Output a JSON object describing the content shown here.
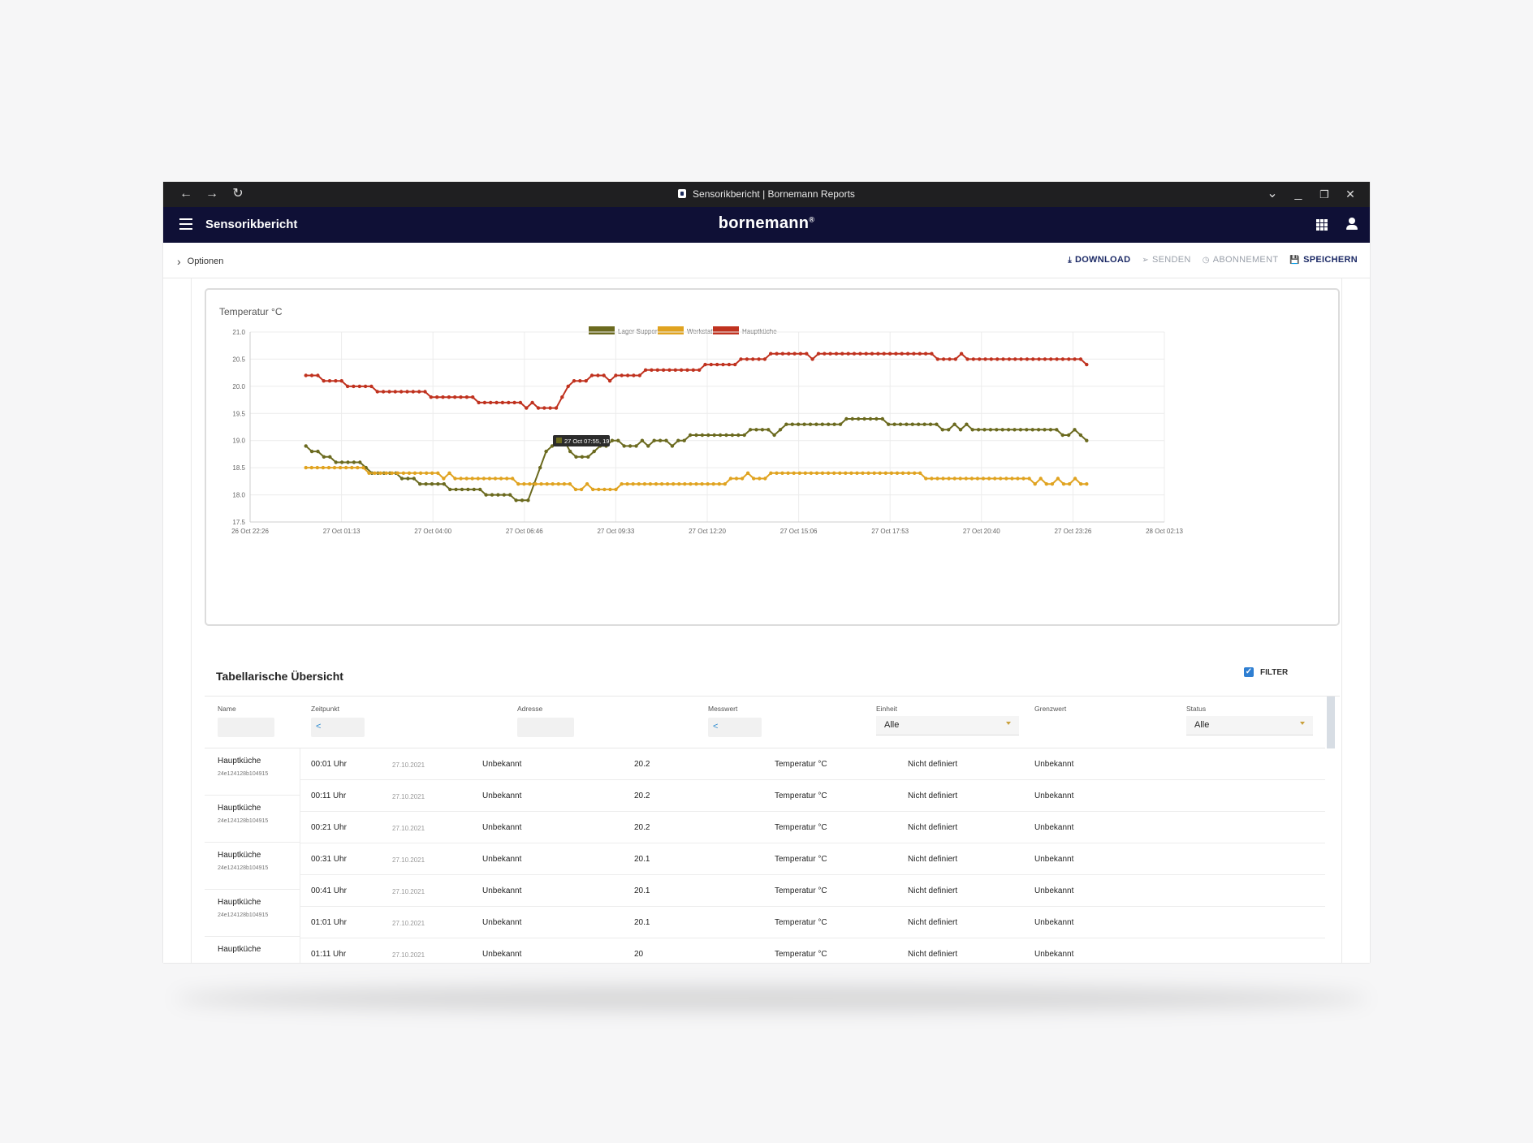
{
  "window": {
    "tab_title": "Sensorikbericht | Bornemann Reports",
    "nav": {
      "back": "←",
      "forward": "→",
      "reload": "↻"
    },
    "controls": {
      "dropdown": "⌄",
      "minimize": "_",
      "restore": "❐",
      "close": "✕"
    }
  },
  "appbar": {
    "title": "Sensorikbericht",
    "logo": "bornemann",
    "logo_mark": "®"
  },
  "toolbar": {
    "options_label": "Optionen",
    "actions": [
      {
        "label": "DOWNLOAD",
        "icon": "⤓",
        "enabled": true
      },
      {
        "label": "SENDEN",
        "icon": "➢",
        "enabled": false
      },
      {
        "label": "ABONNEMENT",
        "icon": "◷",
        "enabled": false
      },
      {
        "label": "SPEICHERN",
        "icon": "💾",
        "enabled": true
      }
    ]
  },
  "chart_data": {
    "type": "line",
    "title": "Temperatur °C",
    "xlabel": "",
    "ylabel": "",
    "ylim": [
      17.5,
      21.0
    ],
    "yticks": [
      "21.0",
      "20.5",
      "20.0",
      "19.5",
      "19.0",
      "18.5",
      "18.0",
      "17.5"
    ],
    "xticks": [
      "26 Oct 22:26",
      "27 Oct 01:13",
      "27 Oct 04:00",
      "27 Oct 06:46",
      "27 Oct 09:33",
      "27 Oct 12:20",
      "27 Oct 15:06",
      "27 Oct 17:53",
      "27 Oct 20:40",
      "27 Oct 23:26",
      "28 Oct 02:13"
    ],
    "grid": true,
    "legend_position": "top-center",
    "tooltip": "27 Oct 07:55, 19",
    "series": [
      {
        "name": "Lager Support",
        "color": "#6b6a1f",
        "values": [
          18.9,
          18.8,
          18.8,
          18.7,
          18.7,
          18.6,
          18.6,
          18.6,
          18.6,
          18.6,
          18.5,
          18.4,
          18.4,
          18.4,
          18.4,
          18.4,
          18.3,
          18.3,
          18.3,
          18.2,
          18.2,
          18.2,
          18.2,
          18.2,
          18.1,
          18.1,
          18.1,
          18.1,
          18.1,
          18.1,
          18.0,
          18.0,
          18.0,
          18.0,
          18.0,
          17.9,
          17.9,
          17.9,
          18.2,
          18.5,
          18.8,
          18.9,
          19.0,
          19.0,
          18.8,
          18.7,
          18.7,
          18.7,
          18.8,
          18.9,
          18.9,
          19.0,
          19.0,
          18.9,
          18.9,
          18.9,
          19.0,
          18.9,
          19.0,
          19.0,
          19.0,
          18.9,
          19.0,
          19.0,
          19.1,
          19.1,
          19.1,
          19.1,
          19.1,
          19.1,
          19.1,
          19.1,
          19.1,
          19.1,
          19.2,
          19.2,
          19.2,
          19.2,
          19.1,
          19.2,
          19.3,
          19.3,
          19.3,
          19.3,
          19.3,
          19.3,
          19.3,
          19.3,
          19.3,
          19.3,
          19.4,
          19.4,
          19.4,
          19.4,
          19.4,
          19.4,
          19.4,
          19.3,
          19.3,
          19.3,
          19.3,
          19.3,
          19.3,
          19.3,
          19.3,
          19.3,
          19.2,
          19.2,
          19.3,
          19.2,
          19.3,
          19.2,
          19.2,
          19.2,
          19.2,
          19.2,
          19.2,
          19.2,
          19.2,
          19.2,
          19.2,
          19.2,
          19.2,
          19.2,
          19.2,
          19.2,
          19.1,
          19.1,
          19.2,
          19.1,
          19.0
        ]
      },
      {
        "name": "Werkstatt",
        "color": "#e0a320",
        "values": [
          18.5,
          18.5,
          18.5,
          18.5,
          18.5,
          18.5,
          18.5,
          18.5,
          18.5,
          18.5,
          18.5,
          18.4,
          18.4,
          18.4,
          18.4,
          18.4,
          18.4,
          18.4,
          18.4,
          18.4,
          18.4,
          18.4,
          18.4,
          18.4,
          18.3,
          18.4,
          18.3,
          18.3,
          18.3,
          18.3,
          18.3,
          18.3,
          18.3,
          18.3,
          18.3,
          18.3,
          18.3,
          18.2,
          18.2,
          18.2,
          18.2,
          18.2,
          18.2,
          18.2,
          18.2,
          18.2,
          18.2,
          18.1,
          18.1,
          18.2,
          18.1,
          18.1,
          18.1,
          18.1,
          18.1,
          18.2,
          18.2,
          18.2,
          18.2,
          18.2,
          18.2,
          18.2,
          18.2,
          18.2,
          18.2,
          18.2,
          18.2,
          18.2,
          18.2,
          18.2,
          18.2,
          18.2,
          18.2,
          18.2,
          18.3,
          18.3,
          18.3,
          18.4,
          18.3,
          18.3,
          18.3,
          18.4,
          18.4,
          18.4,
          18.4,
          18.4,
          18.4,
          18.4,
          18.4,
          18.4,
          18.4,
          18.4,
          18.4,
          18.4,
          18.4,
          18.4,
          18.4,
          18.4,
          18.4,
          18.4,
          18.4,
          18.4,
          18.4,
          18.4,
          18.4,
          18.4,
          18.4,
          18.4,
          18.3,
          18.3,
          18.3,
          18.3,
          18.3,
          18.3,
          18.3,
          18.3,
          18.3,
          18.3,
          18.3,
          18.3,
          18.3,
          18.3,
          18.3,
          18.3,
          18.3,
          18.3,
          18.3,
          18.2,
          18.3,
          18.2,
          18.2,
          18.3,
          18.2,
          18.2,
          18.3,
          18.2,
          18.2
        ]
      },
      {
        "name": "Hauptküche",
        "color": "#c0321f",
        "values": [
          20.2,
          20.2,
          20.2,
          20.1,
          20.1,
          20.1,
          20.1,
          20.0,
          20.0,
          20.0,
          20.0,
          20.0,
          19.9,
          19.9,
          19.9,
          19.9,
          19.9,
          19.9,
          19.9,
          19.9,
          19.9,
          19.8,
          19.8,
          19.8,
          19.8,
          19.8,
          19.8,
          19.8,
          19.8,
          19.7,
          19.7,
          19.7,
          19.7,
          19.7,
          19.7,
          19.7,
          19.7,
          19.6,
          19.7,
          19.6,
          19.6,
          19.6,
          19.6,
          19.8,
          20.0,
          20.1,
          20.1,
          20.1,
          20.2,
          20.2,
          20.2,
          20.1,
          20.2,
          20.2,
          20.2,
          20.2,
          20.2,
          20.3,
          20.3,
          20.3,
          20.3,
          20.3,
          20.3,
          20.3,
          20.3,
          20.3,
          20.3,
          20.4,
          20.4,
          20.4,
          20.4,
          20.4,
          20.4,
          20.5,
          20.5,
          20.5,
          20.5,
          20.5,
          20.6,
          20.6,
          20.6,
          20.6,
          20.6,
          20.6,
          20.6,
          20.5,
          20.6,
          20.6,
          20.6,
          20.6,
          20.6,
          20.6,
          20.6,
          20.6,
          20.6,
          20.6,
          20.6,
          20.6,
          20.6,
          20.6,
          20.6,
          20.6,
          20.6,
          20.6,
          20.6,
          20.6,
          20.5,
          20.5,
          20.5,
          20.5,
          20.6,
          20.5,
          20.5,
          20.5,
          20.5,
          20.5,
          20.5,
          20.5,
          20.5,
          20.5,
          20.5,
          20.5,
          20.5,
          20.5,
          20.5,
          20.5,
          20.5,
          20.5,
          20.5,
          20.5,
          20.5,
          20.4
        ]
      }
    ]
  },
  "table": {
    "title": "Tabellarische Übersicht",
    "filter_label": "FILTER",
    "filter_checked": true,
    "headers": [
      "Name",
      "Zeitpunkt",
      "Adresse",
      "Messwert",
      "Einheit",
      "Grenzwert",
      "Status"
    ],
    "filters": {
      "zeitpunkt": "<",
      "messwert": "<",
      "einheit": "Alle",
      "status": "Alle"
    },
    "name_groups": [
      {
        "name": "Hauptküche",
        "id": "24e124128b104915"
      },
      {
        "name": "Hauptküche",
        "id": "24e124128b104915"
      },
      {
        "name": "Hauptküche",
        "id": "24e124128b104915"
      },
      {
        "name": "Hauptküche",
        "id": "24e124128b104915"
      },
      {
        "name": "Hauptküche",
        "id": ""
      }
    ],
    "rows": [
      {
        "time": "00:01 Uhr",
        "date": "27.10.2021",
        "adresse": "Unbekannt",
        "messwert": "20.2",
        "einheit": "Temperatur °C",
        "grenzwert": "Nicht definiert",
        "status": "Unbekannt"
      },
      {
        "time": "00:11 Uhr",
        "date": "27.10.2021",
        "adresse": "Unbekannt",
        "messwert": "20.2",
        "einheit": "Temperatur °C",
        "grenzwert": "Nicht definiert",
        "status": "Unbekannt"
      },
      {
        "time": "00:21 Uhr",
        "date": "27.10.2021",
        "adresse": "Unbekannt",
        "messwert": "20.2",
        "einheit": "Temperatur °C",
        "grenzwert": "Nicht definiert",
        "status": "Unbekannt"
      },
      {
        "time": "00:31 Uhr",
        "date": "27.10.2021",
        "adresse": "Unbekannt",
        "messwert": "20.1",
        "einheit": "Temperatur °C",
        "grenzwert": "Nicht definiert",
        "status": "Unbekannt"
      },
      {
        "time": "00:41 Uhr",
        "date": "27.10.2021",
        "adresse": "Unbekannt",
        "messwert": "20.1",
        "einheit": "Temperatur °C",
        "grenzwert": "Nicht definiert",
        "status": "Unbekannt"
      },
      {
        "time": "01:01 Uhr",
        "date": "27.10.2021",
        "adresse": "Unbekannt",
        "messwert": "20.1",
        "einheit": "Temperatur °C",
        "grenzwert": "Nicht definiert",
        "status": "Unbekannt"
      },
      {
        "time": "01:11 Uhr",
        "date": "27.10.2021",
        "adresse": "Unbekannt",
        "messwert": "20",
        "einheit": "Temperatur °C",
        "grenzwert": "Nicht definiert",
        "status": "Unbekannt"
      }
    ]
  }
}
